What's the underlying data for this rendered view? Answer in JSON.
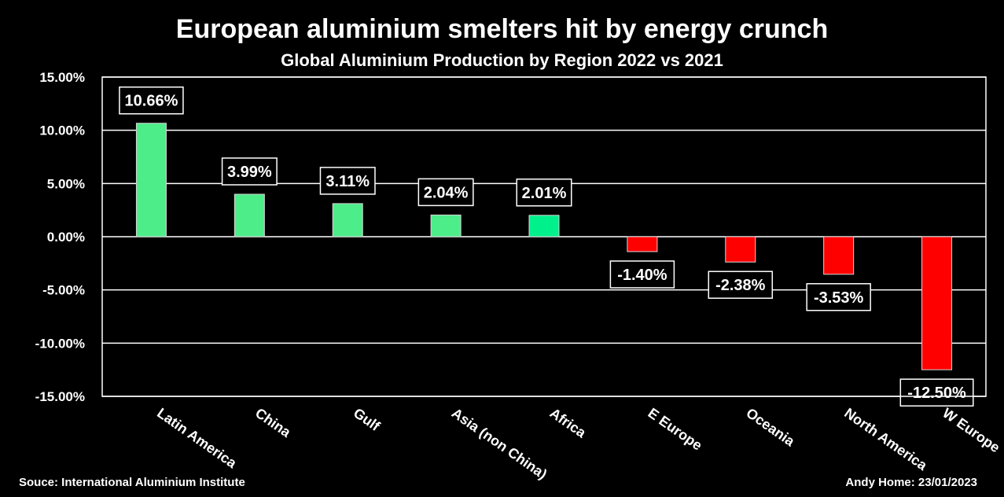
{
  "title": "European aluminium smelters hit by energy crunch",
  "subtitle": "Global Aluminium Production by Region 2022 vs 2021",
  "source": "Souce: International Aluminium Institute",
  "credit": "Andy Home: 23/01/2023",
  "colors": {
    "positive": "#4ded8a",
    "africa": "#00f08c",
    "negative": "#ff0000",
    "background": "#000000",
    "grid": "#ffffff"
  },
  "chart_data": {
    "type": "bar",
    "categories": [
      "Latin America",
      "China",
      "Gulf",
      "Asia (non China)",
      "Africa",
      "E Europe",
      "Oceania",
      "North America",
      "W Europe"
    ],
    "values": [
      10.66,
      3.99,
      3.11,
      2.04,
      2.01,
      -1.4,
      -2.38,
      -3.53,
      -12.5
    ],
    "data_labels": [
      "10.66%",
      "3.99%",
      "3.11%",
      "2.04%",
      "2.01%",
      "-1.40%",
      "-2.38%",
      "-3.53%",
      "-12.50%"
    ],
    "title": "European aluminium smelters hit by energy crunch",
    "subtitle": "Global Aluminium Production by Region 2022 vs 2021",
    "xlabel": "",
    "ylabel": "",
    "ylim": [
      -15,
      15
    ],
    "y_ticks": [
      15,
      10,
      5,
      0,
      -5,
      -10,
      -15
    ],
    "y_tick_labels": [
      "15.00%",
      "10.00%",
      "5.00%",
      "0.00%",
      "-5.00%",
      "-10.00%",
      "-15.00%"
    ],
    "grid": true,
    "legend": "none"
  }
}
